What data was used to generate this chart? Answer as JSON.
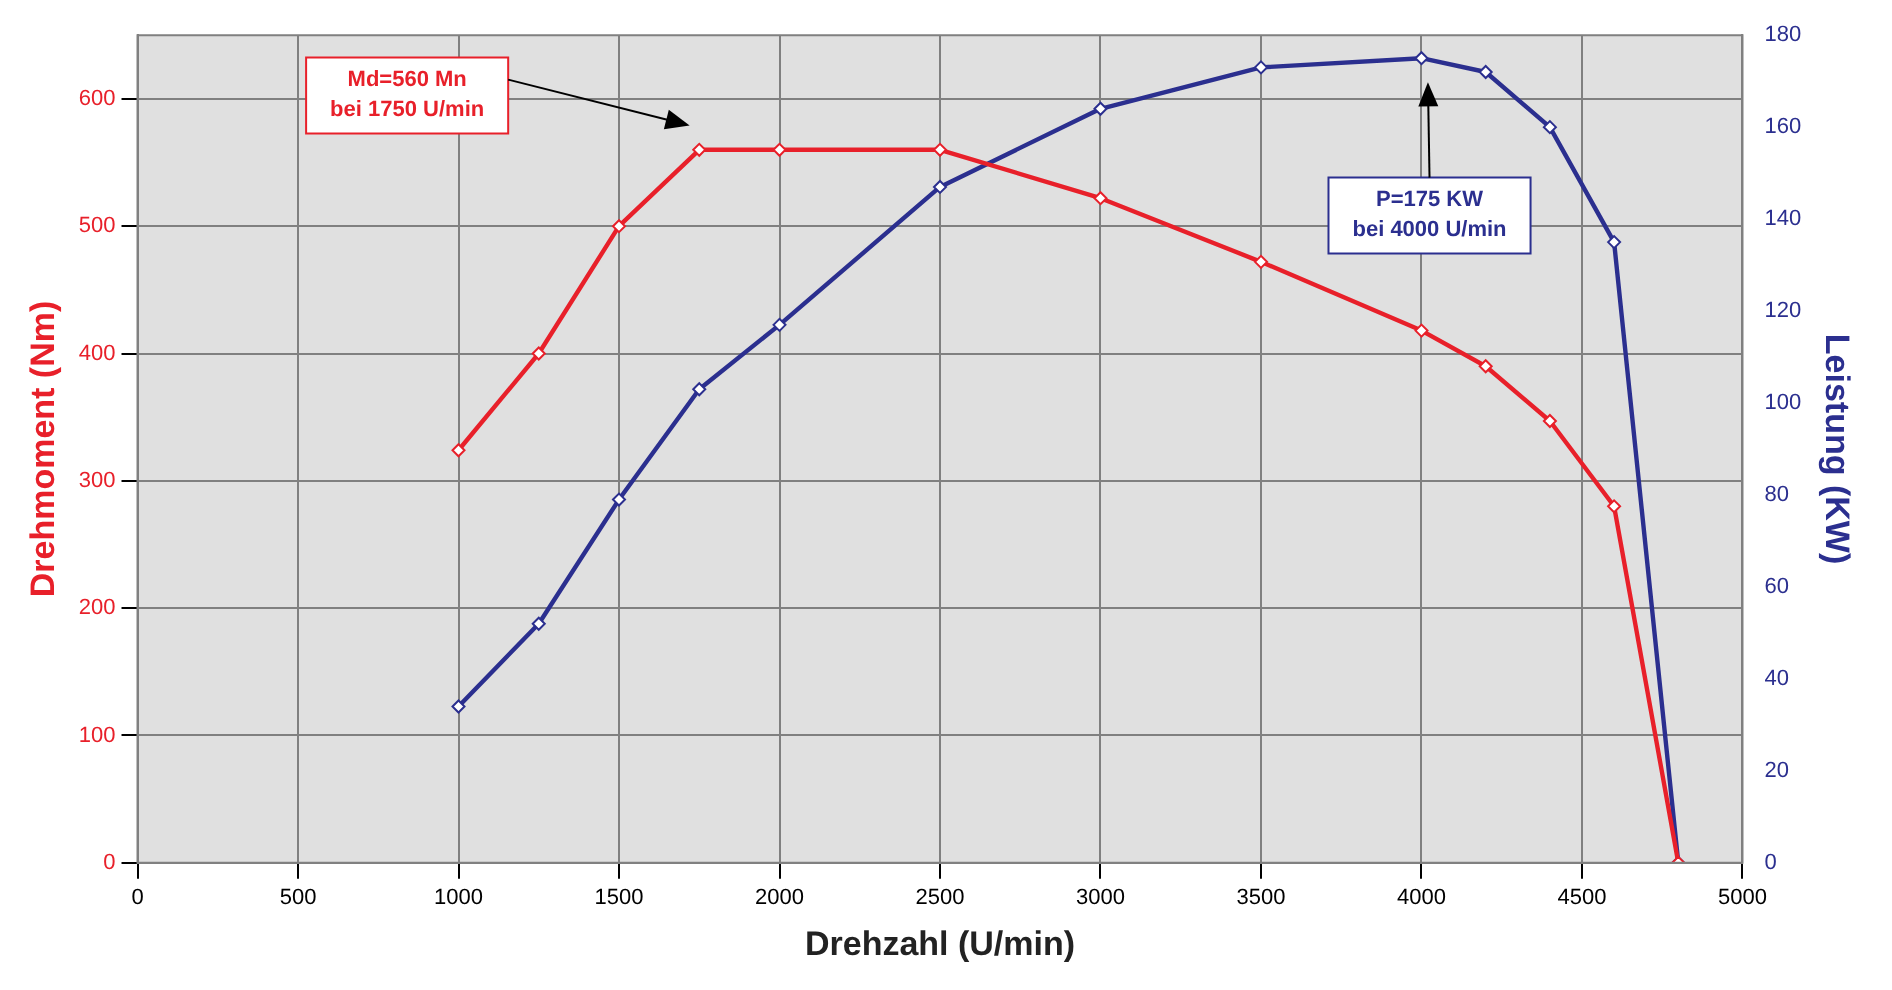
{
  "chart_data": {
    "type": "line",
    "xlabel": "Drehzahl (U/min)",
    "ylabel": "Drehmoment (Nm)",
    "y2label": "Leistung (KW)",
    "xlim": [
      0,
      5000
    ],
    "xticks": [
      0,
      500,
      1000,
      1500,
      2000,
      2500,
      3000,
      3500,
      4000,
      4500,
      5000
    ],
    "ylim": [
      0,
      650
    ],
    "yticks": [
      0,
      100,
      200,
      300,
      400,
      500,
      600
    ],
    "y2lim": [
      0,
      180
    ],
    "y2ticks": [
      0,
      20,
      40,
      60,
      80,
      100,
      120,
      140,
      160,
      180
    ],
    "grid": true,
    "legend": false,
    "marker": "diamond",
    "line_style": "solid",
    "series": [
      {
        "color": "#e8202a",
        "x": [
          1000,
          1250,
          1500,
          1750,
          2000,
          2500,
          3000,
          3500,
          4000,
          4200,
          4400,
          4600,
          4800
        ],
        "values": [
          324,
          400,
          500,
          560,
          560,
          560,
          522,
          472,
          418,
          390,
          347,
          280,
          0
        ]
      },
      {
        "color": "#2b2f8f",
        "axis": "y2",
        "x": [
          1000,
          1250,
          1500,
          1750,
          2000,
          2500,
          3000,
          3500,
          4000,
          4200,
          4400,
          4600,
          4800
        ],
        "values": [
          34,
          52,
          79,
          103,
          117,
          147,
          164,
          173,
          175,
          172,
          160,
          135,
          0
        ]
      }
    ],
    "annotations": [
      "Md=560 Mn\nbei 1750 U/min",
      "P=175 KW\nbei 4000 U/min"
    ]
  }
}
